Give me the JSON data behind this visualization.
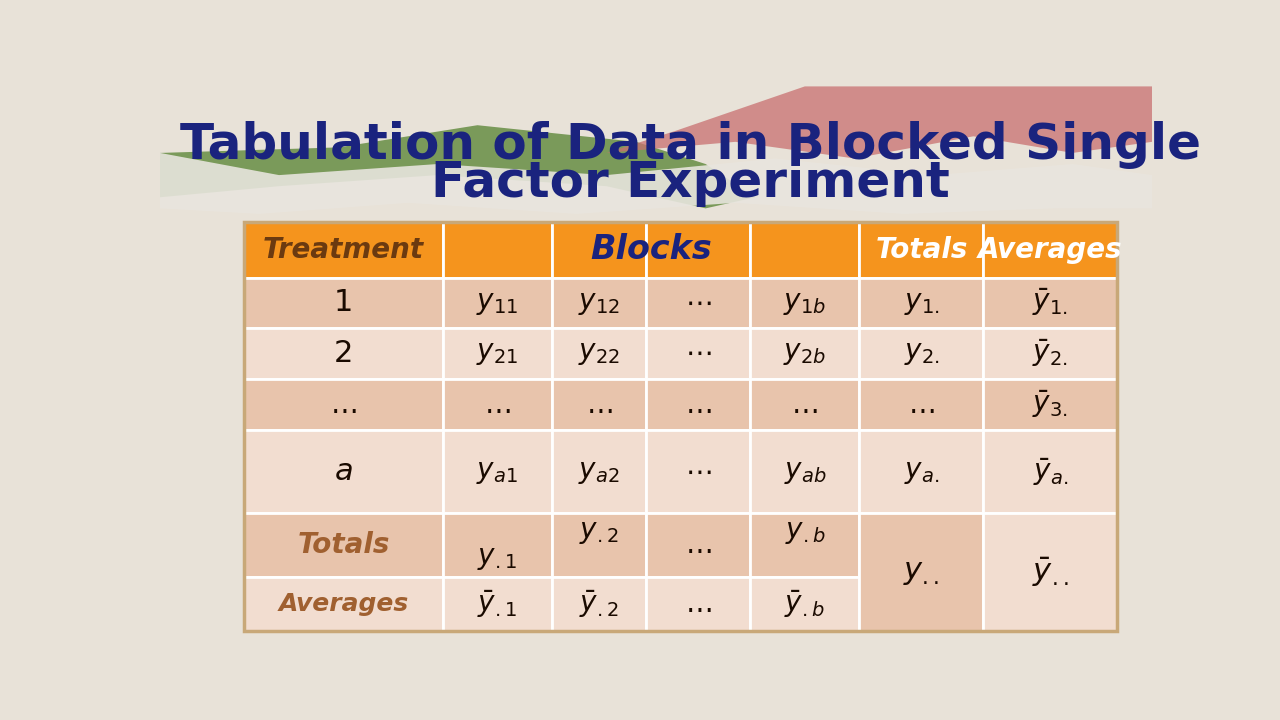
{
  "title_line1": "Tabulation of Data in Blocked Single",
  "title_line2": "Factor Experiment",
  "title_color": "#1a237e",
  "title_fontsize": 36,
  "header_bg": "#f5941d",
  "header_treatment_color": "#6b3a10",
  "header_blocks_color": "#1a237e",
  "header_white": "#ffffff",
  "row_odd": "#e8c4ac",
  "row_even": "#f2ddd0",
  "text_color": "#1a0a00",
  "totals_label_color": "#a06030",
  "slide_bg": "#e8e2d8",
  "wave_green_color": "#7a9a5a",
  "wave_pink_color": "#c87070",
  "col_bounds": [
    0.085,
    0.285,
    0.395,
    0.49,
    0.595,
    0.705,
    0.83,
    0.965
  ],
  "row_bounds": [
    0.755,
    0.655,
    0.565,
    0.472,
    0.38,
    0.23,
    0.115,
    0.018
  ],
  "tl": 0.085,
  "tr": 0.965,
  "tt": 0.755,
  "tb": 0.018
}
